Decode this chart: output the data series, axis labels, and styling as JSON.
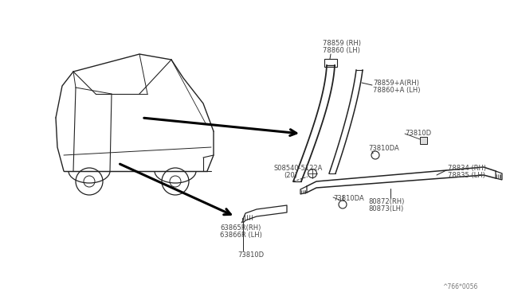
{
  "bg_color": "#ffffff",
  "fig_width": 6.4,
  "fig_height": 3.72,
  "labels": {
    "part1_line1": "78859 (RH)",
    "part1_line2": "78860 (LH)",
    "part2_line1": "78859+A(RH)",
    "part2_line2": "78860+A (LH)",
    "part3": "73810D",
    "part4": "73810DA",
    "part5_line1": "S08540-5122A",
    "part5_line2": "(20)",
    "part6_line1": "78834 (RH)",
    "part6_line2": "78835 (LH)",
    "part7_line1": "80872(RH)",
    "part7_line2": "80873(LH)",
    "part8_line1": "63865R(RH)",
    "part8_line2": "63866R (LH)",
    "part9": "73810DA",
    "part10": "73810D",
    "diagram_id": "^766*0056"
  },
  "font_size": 6.0,
  "text_color": "#444444",
  "line_color": "#222222"
}
